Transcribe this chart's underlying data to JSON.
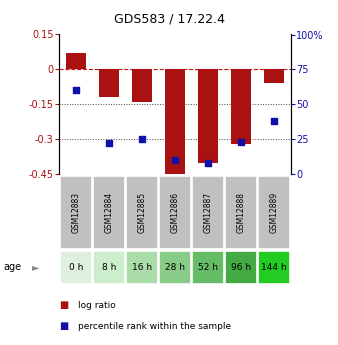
{
  "title": "GDS583 / 17.22.4",
  "samples": [
    "GSM12883",
    "GSM12884",
    "GSM12885",
    "GSM12886",
    "GSM12887",
    "GSM12888",
    "GSM12889"
  ],
  "ages": [
    "0 h",
    "8 h",
    "16 h",
    "28 h",
    "52 h",
    "96 h",
    "144 h"
  ],
  "log_ratio": [
    0.07,
    -0.12,
    -0.14,
    -0.47,
    -0.4,
    -0.32,
    -0.06
  ],
  "percentile_rank": [
    0.6,
    0.22,
    0.25,
    0.1,
    0.08,
    0.23,
    0.38
  ],
  "ylim_left": [
    -0.45,
    0.15
  ],
  "ylim_right": [
    0.0,
    1.0
  ],
  "yticks_left": [
    0.15,
    0.0,
    -0.15,
    -0.3,
    -0.45
  ],
  "ytick_labels_left": [
    "0.15",
    "0",
    "-0.15",
    "-0.3",
    "-0.45"
  ],
  "yticks_right": [
    1.0,
    0.75,
    0.5,
    0.25,
    0.0
  ],
  "ytick_labels_right": [
    "100%",
    "75",
    "50",
    "25",
    "0"
  ],
  "bar_color": "#aa1111",
  "dot_color": "#1111aa",
  "age_colors": [
    "#e0f0e0",
    "#cceecc",
    "#aaddaa",
    "#88cc88",
    "#66bb66",
    "#44aa44",
    "#22cc22"
  ],
  "gsm_bg_color": "#c0c0c0",
  "hline_color": "#cc1111",
  "dotted_line_color": "#444444",
  "bar_width": 0.6
}
